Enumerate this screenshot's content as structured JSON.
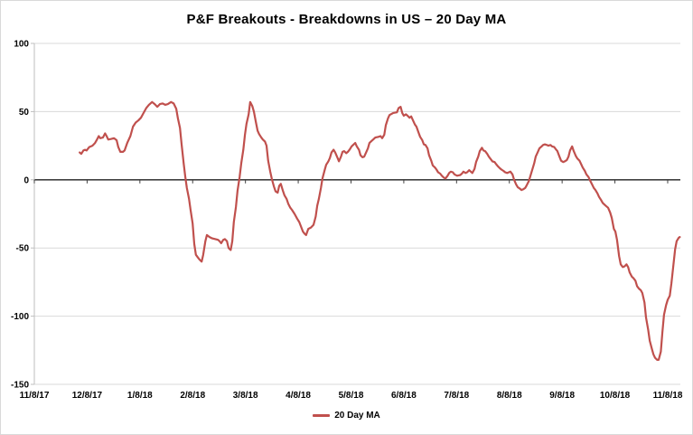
{
  "window": {
    "background": "#FFFFFF",
    "border_color": "#D9D9D9"
  },
  "chart_data": {
    "type": "line",
    "title": "P&F Breakouts - Breakdowns in US – 20 Day MA",
    "grid": true,
    "legend": {
      "position": "bottom",
      "entries": [
        {
          "label": "20 Day MA",
          "color": "#C0504D"
        }
      ]
    },
    "colors": {
      "gridline": "#D9D9D9",
      "axis": "#BFBFBF",
      "zero_line": "#404040",
      "text": "#000000",
      "line": "#C0504D"
    },
    "x_axis": {
      "tick_labels": [
        "11/8/17",
        "12/8/17",
        "1/8/18",
        "2/8/18",
        "3/8/18",
        "4/8/18",
        "5/8/18",
        "6/8/18",
        "7/8/18",
        "8/8/18",
        "9/8/18",
        "10/8/18",
        "11/8/18"
      ],
      "tick_positions": [
        0,
        1,
        2,
        3,
        4,
        5,
        6,
        7,
        8,
        9,
        10,
        11,
        12
      ]
    },
    "y_axis": {
      "tick_values": [
        100,
        50,
        0,
        -50,
        -100,
        -150
      ]
    },
    "xlim": [
      0,
      12.24
    ],
    "ylim": [
      -150,
      100
    ],
    "series": [
      {
        "name": "20 Day MA",
        "color": "#C0504D",
        "points": [
          [
            0.86,
            20
          ],
          [
            0.89,
            19
          ],
          [
            0.93,
            21.5
          ],
          [
            0.96,
            22
          ],
          [
            0.99,
            21.5
          ],
          [
            1.04,
            24
          ],
          [
            1.1,
            25
          ],
          [
            1.15,
            27
          ],
          [
            1.18,
            29
          ],
          [
            1.22,
            32
          ],
          [
            1.25,
            30.5
          ],
          [
            1.3,
            31
          ],
          [
            1.34,
            34
          ],
          [
            1.37,
            32
          ],
          [
            1.4,
            29.5
          ],
          [
            1.46,
            30
          ],
          [
            1.51,
            30.5
          ],
          [
            1.56,
            29
          ],
          [
            1.59,
            24
          ],
          [
            1.63,
            20.5
          ],
          [
            1.68,
            20.5
          ],
          [
            1.71,
            21.5
          ],
          [
            1.76,
            27
          ],
          [
            1.82,
            32
          ],
          [
            1.87,
            39
          ],
          [
            1.92,
            42
          ],
          [
            1.97,
            43.5
          ],
          [
            2.02,
            45.5
          ],
          [
            2.07,
            49
          ],
          [
            2.12,
            52.5
          ],
          [
            2.17,
            55
          ],
          [
            2.23,
            57
          ],
          [
            2.28,
            55.5
          ],
          [
            2.33,
            53.5
          ],
          [
            2.38,
            55.5
          ],
          [
            2.43,
            56
          ],
          [
            2.48,
            55
          ],
          [
            2.53,
            55.5
          ],
          [
            2.59,
            57
          ],
          [
            2.64,
            56
          ],
          [
            2.69,
            52
          ],
          [
            2.72,
            45
          ],
          [
            2.76,
            38
          ],
          [
            2.79,
            26
          ],
          [
            2.83,
            12
          ],
          [
            2.86,
            2
          ],
          [
            2.89,
            -6
          ],
          [
            2.93,
            -14
          ],
          [
            2.96,
            -22
          ],
          [
            3.0,
            -32
          ],
          [
            3.03,
            -47
          ],
          [
            3.06,
            -55
          ],
          [
            3.1,
            -57
          ],
          [
            3.13,
            -58.5
          ],
          [
            3.17,
            -60
          ],
          [
            3.2,
            -55
          ],
          [
            3.24,
            -45
          ],
          [
            3.27,
            -40.5
          ],
          [
            3.32,
            -42
          ],
          [
            3.37,
            -43
          ],
          [
            3.43,
            -43.5
          ],
          [
            3.48,
            -44
          ],
          [
            3.51,
            -45
          ],
          [
            3.54,
            -46.5
          ],
          [
            3.58,
            -44
          ],
          [
            3.61,
            -43.5
          ],
          [
            3.65,
            -45
          ],
          [
            3.68,
            -50
          ],
          [
            3.72,
            -51.5
          ],
          [
            3.75,
            -45
          ],
          [
            3.78,
            -31
          ],
          [
            3.82,
            -20
          ],
          [
            3.85,
            -8
          ],
          [
            3.89,
            2
          ],
          [
            3.92,
            12
          ],
          [
            3.96,
            22
          ],
          [
            3.99,
            33
          ],
          [
            4.02,
            41
          ],
          [
            4.06,
            48
          ],
          [
            4.09,
            57
          ],
          [
            4.13,
            54
          ],
          [
            4.16,
            50
          ],
          [
            4.2,
            42
          ],
          [
            4.23,
            36
          ],
          [
            4.26,
            33.5
          ],
          [
            4.3,
            31
          ],
          [
            4.33,
            29.5
          ],
          [
            4.37,
            28
          ],
          [
            4.4,
            25
          ],
          [
            4.43,
            14
          ],
          [
            4.47,
            6
          ],
          [
            4.5,
            0.5
          ],
          [
            4.54,
            -5
          ],
          [
            4.57,
            -8.5
          ],
          [
            4.61,
            -9.5
          ],
          [
            4.64,
            -4.5
          ],
          [
            4.67,
            -3
          ],
          [
            4.71,
            -8
          ],
          [
            4.74,
            -11.5
          ],
          [
            4.78,
            -14
          ],
          [
            4.81,
            -17.5
          ],
          [
            4.85,
            -20.5
          ],
          [
            4.88,
            -22
          ],
          [
            4.93,
            -25
          ],
          [
            4.98,
            -28.5
          ],
          [
            5.02,
            -31
          ],
          [
            5.05,
            -34
          ],
          [
            5.09,
            -38
          ],
          [
            5.12,
            -39.5
          ],
          [
            5.15,
            -40.5
          ],
          [
            5.19,
            -36
          ],
          [
            5.24,
            -35
          ],
          [
            5.29,
            -33
          ],
          [
            5.33,
            -27
          ],
          [
            5.36,
            -19
          ],
          [
            5.39,
            -14
          ],
          [
            5.43,
            -6
          ],
          [
            5.46,
            1
          ],
          [
            5.5,
            7
          ],
          [
            5.53,
            11
          ],
          [
            5.57,
            13.5
          ],
          [
            5.6,
            16
          ],
          [
            5.63,
            20
          ],
          [
            5.67,
            22
          ],
          [
            5.7,
            20
          ],
          [
            5.74,
            16.5
          ],
          [
            5.77,
            13.5
          ],
          [
            5.81,
            17
          ],
          [
            5.84,
            20.5
          ],
          [
            5.87,
            21
          ],
          [
            5.91,
            19.5
          ],
          [
            5.94,
            20.5
          ],
          [
            5.98,
            22.5
          ],
          [
            6.01,
            24.5
          ],
          [
            6.04,
            25.5
          ],
          [
            6.08,
            27
          ],
          [
            6.11,
            24.5
          ],
          [
            6.15,
            22
          ],
          [
            6.18,
            18
          ],
          [
            6.22,
            16.5
          ],
          [
            6.25,
            17
          ],
          [
            6.28,
            19.5
          ],
          [
            6.32,
            23
          ],
          [
            6.35,
            27
          ],
          [
            6.39,
            28.5
          ],
          [
            6.42,
            29.5
          ],
          [
            6.46,
            31
          ],
          [
            6.52,
            31.5
          ],
          [
            6.56,
            32
          ],
          [
            6.59,
            30.5
          ],
          [
            6.63,
            33
          ],
          [
            6.66,
            40
          ],
          [
            6.7,
            45
          ],
          [
            6.73,
            47.5
          ],
          [
            6.8,
            49
          ],
          [
            6.87,
            49.5
          ],
          [
            6.9,
            52.5
          ],
          [
            6.94,
            53.5
          ],
          [
            6.97,
            49
          ],
          [
            7.0,
            47
          ],
          [
            7.04,
            48
          ],
          [
            7.07,
            47
          ],
          [
            7.11,
            45.5
          ],
          [
            7.14,
            46.5
          ],
          [
            7.17,
            44
          ],
          [
            7.21,
            40.5
          ],
          [
            7.24,
            39
          ],
          [
            7.28,
            34.5
          ],
          [
            7.31,
            31.5
          ],
          [
            7.35,
            29
          ],
          [
            7.38,
            26
          ],
          [
            7.41,
            25.5
          ],
          [
            7.45,
            23
          ],
          [
            7.48,
            18
          ],
          [
            7.52,
            14
          ],
          [
            7.55,
            10.5
          ],
          [
            7.59,
            9
          ],
          [
            7.62,
            7.5
          ],
          [
            7.65,
            5.5
          ],
          [
            7.69,
            4.5
          ],
          [
            7.72,
            3
          ],
          [
            7.76,
            1.5
          ],
          [
            7.79,
            1
          ],
          [
            7.83,
            3
          ],
          [
            7.86,
            5
          ],
          [
            7.89,
            6
          ],
          [
            7.93,
            5.5
          ],
          [
            7.96,
            4
          ],
          [
            8.01,
            3
          ],
          [
            8.07,
            3.5
          ],
          [
            8.1,
            4.5
          ],
          [
            8.13,
            6
          ],
          [
            8.17,
            5
          ],
          [
            8.2,
            5.5
          ],
          [
            8.24,
            7
          ],
          [
            8.27,
            6
          ],
          [
            8.3,
            5
          ],
          [
            8.34,
            8
          ],
          [
            8.37,
            13
          ],
          [
            8.41,
            17
          ],
          [
            8.44,
            21
          ],
          [
            8.48,
            23.5
          ],
          [
            8.51,
            21.5
          ],
          [
            8.54,
            21
          ],
          [
            8.58,
            19
          ],
          [
            8.61,
            17
          ],
          [
            8.65,
            15
          ],
          [
            8.68,
            13.5
          ],
          [
            8.72,
            13
          ],
          [
            8.75,
            11.5
          ],
          [
            8.78,
            10
          ],
          [
            8.82,
            8.5
          ],
          [
            8.85,
            7.5
          ],
          [
            8.89,
            6.5
          ],
          [
            8.92,
            5.5
          ],
          [
            8.96,
            5
          ],
          [
            8.99,
            5.5
          ],
          [
            9.02,
            6
          ],
          [
            9.06,
            4
          ],
          [
            9.09,
            0
          ],
          [
            9.13,
            -3.5
          ],
          [
            9.16,
            -5.5
          ],
          [
            9.2,
            -6.5
          ],
          [
            9.23,
            -7.5
          ],
          [
            9.26,
            -7
          ],
          [
            9.3,
            -6
          ],
          [
            9.33,
            -4
          ],
          [
            9.37,
            -1
          ],
          [
            9.4,
            3
          ],
          [
            9.44,
            8
          ],
          [
            9.47,
            12
          ],
          [
            9.5,
            17
          ],
          [
            9.54,
            20.5
          ],
          [
            9.57,
            23
          ],
          [
            9.61,
            24.5
          ],
          [
            9.64,
            25.5
          ],
          [
            9.67,
            26
          ],
          [
            9.71,
            25.5
          ],
          [
            9.74,
            25
          ],
          [
            9.78,
            25.5
          ],
          [
            9.81,
            24.5
          ],
          [
            9.85,
            24
          ],
          [
            9.88,
            22.5
          ],
          [
            9.91,
            21
          ],
          [
            9.95,
            17
          ],
          [
            9.98,
            14
          ],
          [
            10.02,
            13
          ],
          [
            10.05,
            13.5
          ],
          [
            10.09,
            14.5
          ],
          [
            10.12,
            17
          ],
          [
            10.15,
            21.5
          ],
          [
            10.19,
            24.5
          ],
          [
            10.22,
            21
          ],
          [
            10.26,
            17.5
          ],
          [
            10.29,
            15.5
          ],
          [
            10.33,
            14
          ],
          [
            10.36,
            11.5
          ],
          [
            10.39,
            9
          ],
          [
            10.43,
            6.5
          ],
          [
            10.46,
            4
          ],
          [
            10.5,
            2
          ],
          [
            10.53,
            -0.5
          ],
          [
            10.57,
            -3.5
          ],
          [
            10.6,
            -6
          ],
          [
            10.63,
            -7.5
          ],
          [
            10.67,
            -10
          ],
          [
            10.7,
            -12.5
          ],
          [
            10.74,
            -15
          ],
          [
            10.77,
            -17
          ],
          [
            10.81,
            -18.5
          ],
          [
            10.84,
            -19.5
          ],
          [
            10.87,
            -20.5
          ],
          [
            10.91,
            -24
          ],
          [
            10.94,
            -28
          ],
          [
            10.98,
            -36
          ],
          [
            11.01,
            -38
          ],
          [
            11.04,
            -44
          ],
          [
            11.08,
            -56
          ],
          [
            11.11,
            -62
          ],
          [
            11.15,
            -64
          ],
          [
            11.18,
            -63.5
          ],
          [
            11.22,
            -62
          ],
          [
            11.25,
            -64
          ],
          [
            11.28,
            -68
          ],
          [
            11.32,
            -71
          ],
          [
            11.35,
            -72
          ],
          [
            11.39,
            -74
          ],
          [
            11.42,
            -78
          ],
          [
            11.46,
            -80
          ],
          [
            11.49,
            -81
          ],
          [
            11.52,
            -83
          ],
          [
            11.56,
            -90
          ],
          [
            11.59,
            -101
          ],
          [
            11.63,
            -110
          ],
          [
            11.66,
            -118
          ],
          [
            11.7,
            -124
          ],
          [
            11.73,
            -128
          ],
          [
            11.76,
            -130.5
          ],
          [
            11.8,
            -132
          ],
          [
            11.83,
            -132
          ],
          [
            11.87,
            -126
          ],
          [
            11.9,
            -112
          ],
          [
            11.93,
            -99
          ],
          [
            11.97,
            -92
          ],
          [
            12.0,
            -88
          ],
          [
            12.04,
            -85
          ],
          [
            12.07,
            -76
          ],
          [
            12.11,
            -62
          ],
          [
            12.14,
            -51
          ],
          [
            12.17,
            -45
          ],
          [
            12.21,
            -42.5
          ],
          [
            12.23,
            -42
          ]
        ]
      }
    ]
  }
}
